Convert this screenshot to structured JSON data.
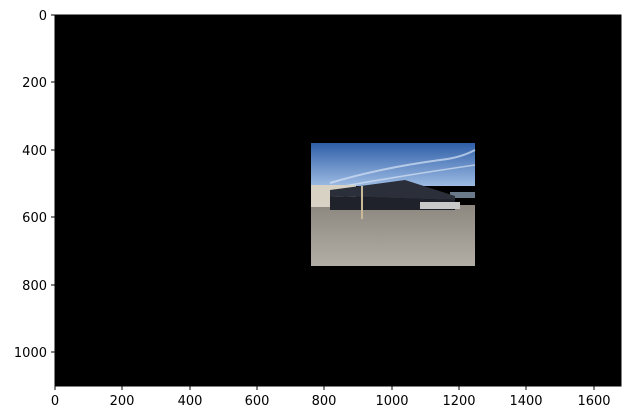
{
  "figure": {
    "background_color": "#000000",
    "x_ticks": [
      "0",
      "200",
      "400",
      "600",
      "800",
      "1000",
      "1200",
      "1400",
      "1600"
    ],
    "y_ticks": [
      "0",
      "200",
      "400",
      "600",
      "800",
      "1000"
    ]
  },
  "photo": {
    "scene": "photo of a parking lot with covered carport structures under a blue sky",
    "colors": {
      "sky": "#3d6fb5",
      "sky_light": "#8fb0dc",
      "ground": "#a8a39a",
      "roof": "#2b2f3a"
    }
  }
}
